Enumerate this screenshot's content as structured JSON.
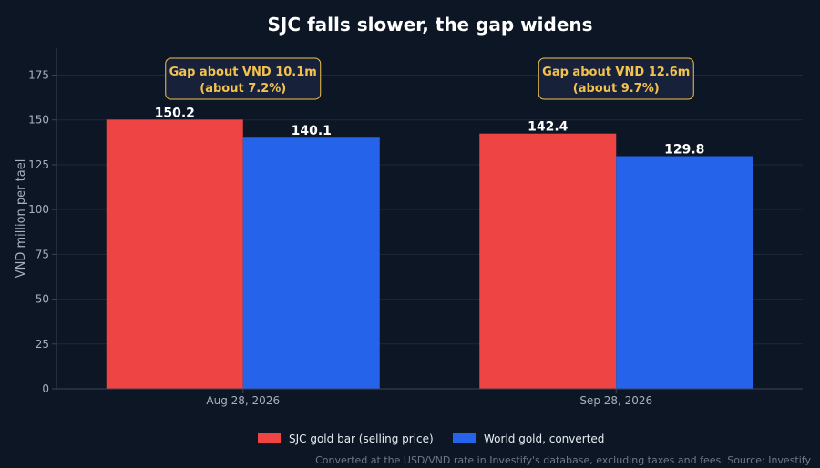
{
  "chart_data": {
    "type": "bar",
    "title": "SJC falls slower, the gap widens",
    "xlabel": "",
    "ylabel": "VND million per tael",
    "ylim": [
      0,
      190
    ],
    "yticks": [
      0,
      25,
      50,
      75,
      100,
      125,
      150,
      175
    ],
    "grid": true,
    "categories": [
      "Aug 28, 2026",
      "Sep 28, 2026"
    ],
    "series": [
      {
        "name": "SJC gold bar (selling price)",
        "color": "#ef4444",
        "values": [
          150.2,
          142.4
        ],
        "labels": [
          "150.2",
          "142.4"
        ]
      },
      {
        "name": "World gold, converted",
        "color": "#2563eb",
        "values": [
          140.1,
          129.8
        ],
        "labels": [
          "140.1",
          "129.8"
        ]
      }
    ],
    "annotations": [
      {
        "category": "Aug 28, 2026",
        "lines": [
          "Gap about VND 10.1m",
          "(about 7.2%)"
        ]
      },
      {
        "category": "Sep 28, 2026",
        "lines": [
          "Gap about VND 12.6m",
          "(about 9.7%)"
        ]
      }
    ],
    "legend_position": "bottom-center",
    "footnote": "Converted at the USD/VND rate in Investify's database, excluding taxes and fees. Source: Investify"
  },
  "colors": {
    "background": "#0d1624",
    "annotation_border": "#f2c14e",
    "annotation_fill": "#17223a",
    "annotation_text": "#f2c14e"
  }
}
